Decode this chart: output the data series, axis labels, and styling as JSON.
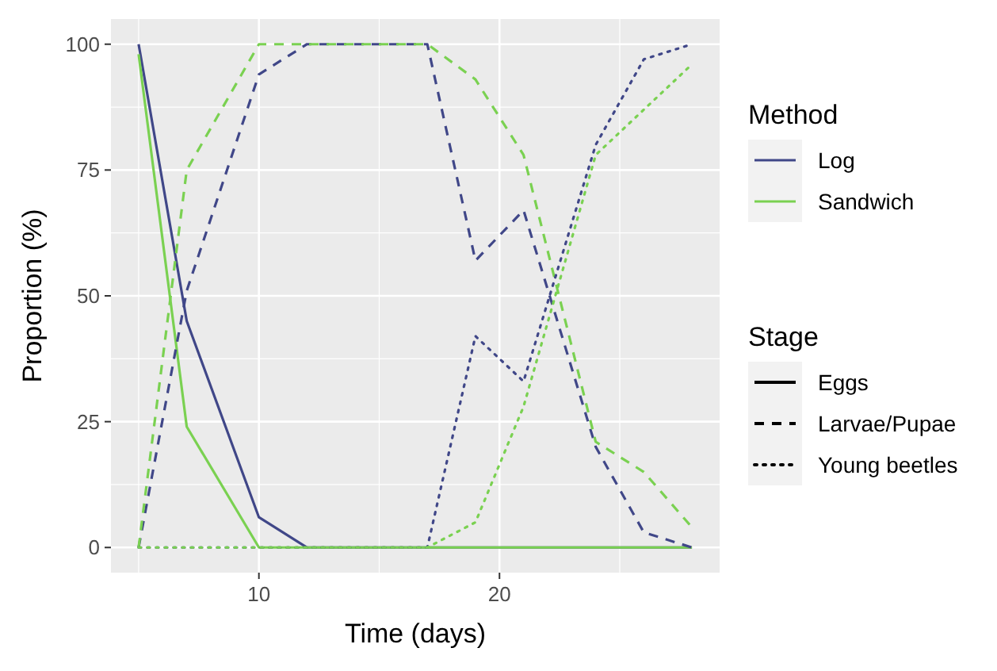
{
  "chart_data": {
    "type": "line",
    "xlabel": "Time (days)",
    "ylabel": "Proportion (%)",
    "legend_title": [
      "Method",
      "Stage"
    ],
    "annotations": [
      "Eggs",
      "Larvae/Pupae",
      "Young beetles"
    ],
    "legend": "right",
    "grid": true,
    "xlim": [
      3.85,
      29.15
    ],
    "xticks": [
      10,
      20
    ],
    "ylim": [
      -5,
      105
    ],
    "yticks": [
      0,
      25,
      50,
      75,
      100
    ],
    "x": [
      5,
      7,
      10,
      12,
      17,
      19,
      21,
      24,
      26,
      28
    ],
    "series": [
      {
        "name": "Log",
        "line_style": "solid",
        "color": "#404788",
        "values": [
          100,
          45,
          6,
          0,
          0,
          0,
          0,
          0,
          0,
          0
        ]
      },
      {
        "name": "Sandwich",
        "line_style": "solid",
        "color": "#7ad151",
        "values": [
          98,
          24,
          0,
          0,
          0,
          0,
          0,
          0,
          0,
          0
        ]
      },
      {
        "line_style": "dashed",
        "color": "#404788",
        "values": [
          0,
          51,
          94,
          100,
          100,
          57,
          67,
          20,
          3,
          0
        ]
      },
      {
        "line_style": "dashed",
        "color": "#7ad151",
        "values": [
          0,
          75,
          100,
          100,
          100,
          93,
          78,
          21,
          15,
          4
        ]
      },
      {
        "line_style": "dotted",
        "color": "#404788",
        "values": [
          0,
          0,
          0,
          0,
          0,
          42,
          33,
          80,
          97,
          100
        ]
      },
      {
        "line_style": "dotted",
        "color": "#7ad151",
        "values": [
          0,
          0,
          0,
          0,
          0,
          5,
          28,
          78,
          87,
          96
        ]
      }
    ]
  }
}
